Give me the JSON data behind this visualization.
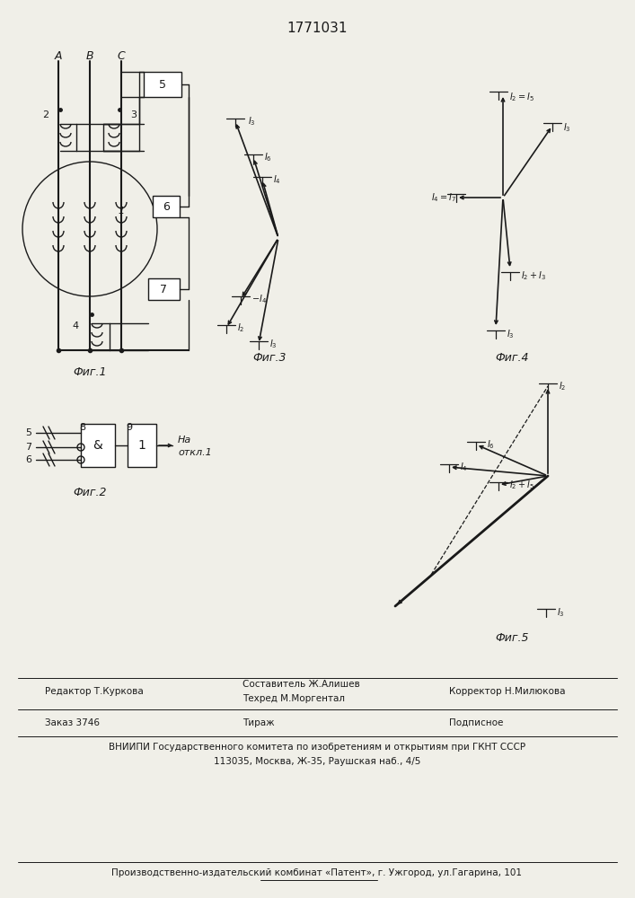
{
  "title": "1771031",
  "fig1_caption": "Фиг.1",
  "fig2_caption": "Фиг.2",
  "fig3_caption": "Фиг.3",
  "fig4_caption": "Фиг.4",
  "fig5_caption": "Фиг.5",
  "footer_line1": "Составитель Ж.Алишев",
  "footer_line2": "Техред М.Моргентал",
  "footer_editor": "Редактор Т.Куркова",
  "footer_corrector": "Корректор Н.Милюкова",
  "footer_order": "Заказ 3746",
  "footer_tirazh": "Тираж",
  "footer_podpisnoe": "Подписное",
  "footer_vnipi": "ВНИИПИ Государственного комитета по изобретениям и открытиям при ГКНТ СССР",
  "footer_address": "113035, Москва, Ж-35, Раушская наб., 4/5",
  "footer_patent": "Производственно-издательский комбинат «Патент», г. Ужгород, ул.Гагарина, 101",
  "bg_color": "#f0efe8",
  "line_color": "#1a1a1a"
}
